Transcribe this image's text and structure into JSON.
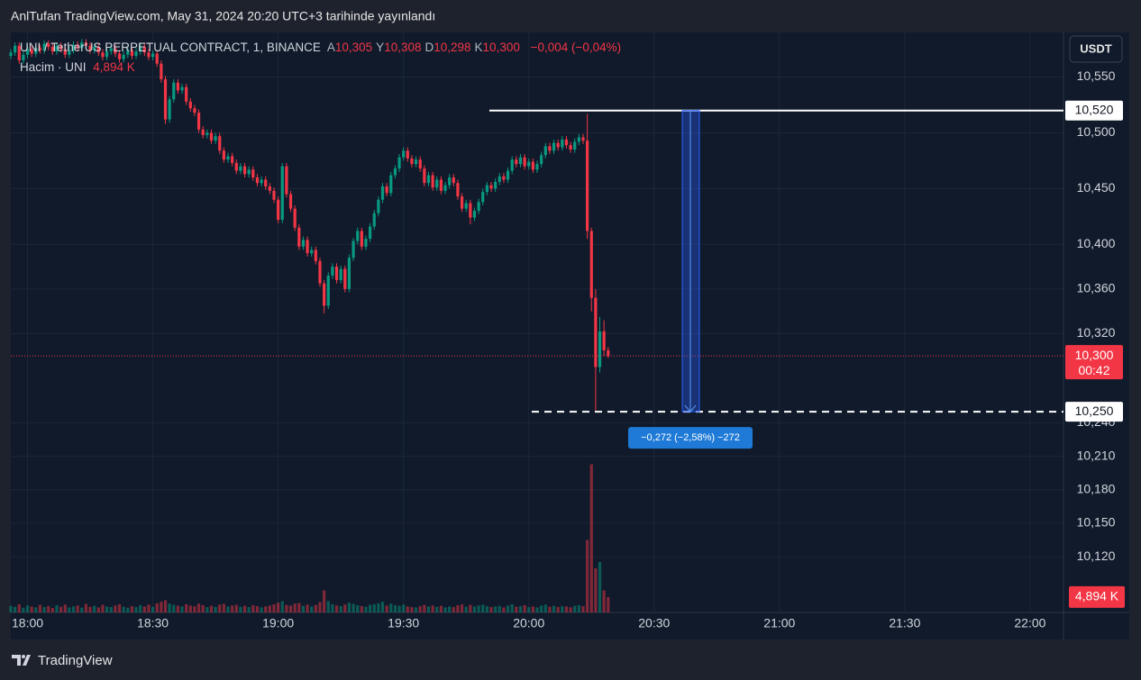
{
  "header": {
    "publisher": "AnlTufan TradingView.com, May 31, 2024 20:20 UTC+3 tarihinde yayınlandı"
  },
  "footer": {
    "brand": "TradingView"
  },
  "chart_data": {
    "type": "candlestick",
    "symbol": "UNI / TetherUS PERPETUAL CONTRACT, 1, BINANCE",
    "ohlc_legend": [
      {
        "key": "A",
        "value": "10,305"
      },
      {
        "key": "Y",
        "value": "10,308"
      },
      {
        "key": "D",
        "value": "10,298"
      },
      {
        "key": "K",
        "value": "10,300"
      }
    ],
    "change": "−0,004 (−0,04%)",
    "currency": "USDT",
    "up_color": "#089981",
    "down_color": "#f23645",
    "x": [
      "17:56",
      "17:57",
      "17:58",
      "17:59",
      "18:00",
      "18:01",
      "18:02",
      "18:03",
      "18:04",
      "18:05",
      "18:06",
      "18:07",
      "18:08",
      "18:09",
      "18:10",
      "18:11",
      "18:12",
      "18:13",
      "18:14",
      "18:15",
      "18:16",
      "18:17",
      "18:18",
      "18:19",
      "18:20",
      "18:21",
      "18:22",
      "18:23",
      "18:24",
      "18:25",
      "18:26",
      "18:27",
      "18:28",
      "18:29",
      "18:30",
      "18:31",
      "18:32",
      "18:33",
      "18:34",
      "18:35",
      "18:36",
      "18:37",
      "18:38",
      "18:39",
      "18:40",
      "18:41",
      "18:42",
      "18:43",
      "18:44",
      "18:45",
      "18:46",
      "18:47",
      "18:48",
      "18:49",
      "18:50",
      "18:51",
      "18:52",
      "18:53",
      "18:54",
      "18:55",
      "18:56",
      "18:57",
      "18:58",
      "18:59",
      "19:00",
      "19:01",
      "19:02",
      "19:03",
      "19:04",
      "19:05",
      "19:06",
      "19:07",
      "19:08",
      "19:09",
      "19:10",
      "19:11",
      "19:12",
      "19:13",
      "19:14",
      "19:15",
      "19:16",
      "19:17",
      "19:18",
      "19:19",
      "19:20",
      "19:21",
      "19:22",
      "19:23",
      "19:24",
      "19:25",
      "19:26",
      "19:27",
      "19:28",
      "19:29",
      "19:30",
      "19:31",
      "19:32",
      "19:33",
      "19:34",
      "19:35",
      "19:36",
      "19:37",
      "19:38",
      "19:39",
      "19:40",
      "19:41",
      "19:42",
      "19:43",
      "19:44",
      "19:45",
      "19:46",
      "19:47",
      "19:48",
      "19:49",
      "19:50",
      "19:51",
      "19:52",
      "19:53",
      "19:54",
      "19:55",
      "19:56",
      "19:57",
      "19:58",
      "19:59",
      "20:00",
      "20:01",
      "20:02",
      "20:03",
      "20:04",
      "20:05",
      "20:06",
      "20:07",
      "20:08",
      "20:09",
      "20:10",
      "20:11",
      "20:12",
      "20:13",
      "20:14",
      "20:15",
      "20:16",
      "20:17",
      "20:18",
      "20:19"
    ],
    "candles": [
      [
        10.569,
        10.575,
        10.566,
        10.572
      ],
      [
        10.572,
        10.581,
        10.569,
        10.578
      ],
      [
        10.578,
        10.581,
        10.562,
        10.565
      ],
      [
        10.565,
        10.573,
        10.562,
        10.57
      ],
      [
        10.57,
        10.578,
        10.567,
        10.575
      ],
      [
        10.575,
        10.578,
        10.568,
        10.571
      ],
      [
        10.571,
        10.579,
        10.568,
        10.576
      ],
      [
        10.576,
        10.579,
        10.571,
        10.574
      ],
      [
        10.574,
        10.583,
        10.571,
        10.58
      ],
      [
        10.58,
        10.583,
        10.574,
        10.577
      ],
      [
        10.577,
        10.58,
        10.57,
        10.573
      ],
      [
        10.573,
        10.581,
        10.57,
        10.578
      ],
      [
        10.578,
        10.581,
        10.572,
        10.575
      ],
      [
        10.575,
        10.578,
        10.567,
        10.57
      ],
      [
        10.57,
        10.577,
        10.567,
        10.574
      ],
      [
        10.574,
        10.582,
        10.571,
        10.579
      ],
      [
        10.579,
        10.582,
        10.573,
        10.576
      ],
      [
        10.576,
        10.584,
        10.573,
        10.581
      ],
      [
        10.581,
        10.584,
        10.575,
        10.578
      ],
      [
        10.578,
        10.581,
        10.571,
        10.574
      ],
      [
        10.574,
        10.58,
        10.571,
        10.577
      ],
      [
        10.577,
        10.58,
        10.569,
        10.572
      ],
      [
        10.572,
        10.575,
        10.565,
        10.568
      ],
      [
        10.568,
        10.576,
        10.565,
        10.573
      ],
      [
        10.573,
        10.579,
        10.57,
        10.576
      ],
      [
        10.576,
        10.579,
        10.568,
        10.571
      ],
      [
        10.571,
        10.574,
        10.563,
        10.566
      ],
      [
        10.566,
        10.573,
        10.563,
        10.57
      ],
      [
        10.57,
        10.577,
        10.567,
        10.574
      ],
      [
        10.574,
        10.577,
        10.566,
        10.569
      ],
      [
        10.569,
        10.576,
        10.566,
        10.573
      ],
      [
        10.573,
        10.58,
        10.57,
        10.577
      ],
      [
        10.577,
        10.58,
        10.569,
        10.572
      ],
      [
        10.572,
        10.575,
        10.565,
        10.568
      ],
      [
        10.568,
        10.574,
        10.565,
        10.571
      ],
      [
        10.571,
        10.574,
        10.559,
        10.562
      ],
      [
        10.562,
        10.565,
        10.545,
        10.548
      ],
      [
        10.548,
        10.551,
        10.508,
        10.512
      ],
      [
        10.512,
        10.533,
        10.509,
        10.53
      ],
      [
        10.53,
        10.548,
        10.527,
        10.545
      ],
      [
        10.545,
        10.548,
        10.535,
        10.538
      ],
      [
        10.538,
        10.544,
        10.535,
        10.541
      ],
      [
        10.541,
        10.544,
        10.525,
        10.528
      ],
      [
        10.528,
        10.531,
        10.519,
        10.522
      ],
      [
        10.522,
        10.525,
        10.515,
        10.518
      ],
      [
        10.518,
        10.521,
        10.5,
        10.503
      ],
      [
        10.503,
        10.506,
        10.495,
        10.498
      ],
      [
        10.498,
        10.503,
        10.495,
        10.5
      ],
      [
        10.5,
        10.503,
        10.49,
        10.493
      ],
      [
        10.493,
        10.5,
        10.49,
        10.497
      ],
      [
        10.497,
        10.5,
        10.481,
        10.484
      ],
      [
        10.484,
        10.487,
        10.473,
        10.476
      ],
      [
        10.476,
        10.482,
        10.473,
        10.479
      ],
      [
        10.479,
        10.482,
        10.47,
        10.473
      ],
      [
        10.473,
        10.476,
        10.463,
        10.466
      ],
      [
        10.466,
        10.473,
        10.463,
        10.47
      ],
      [
        10.47,
        10.473,
        10.46,
        10.463
      ],
      [
        10.463,
        10.47,
        10.46,
        10.467
      ],
      [
        10.467,
        10.47,
        10.457,
        10.46
      ],
      [
        10.46,
        10.463,
        10.452,
        10.455
      ],
      [
        10.455,
        10.461,
        10.452,
        10.458
      ],
      [
        10.458,
        10.461,
        10.449,
        10.452
      ],
      [
        10.452,
        10.455,
        10.445,
        10.448
      ],
      [
        10.448,
        10.451,
        10.437,
        10.44
      ],
      [
        10.44,
        10.443,
        10.419,
        10.422
      ],
      [
        10.422,
        10.473,
        10.419,
        10.47
      ],
      [
        10.47,
        10.473,
        10.442,
        10.445
      ],
      [
        10.445,
        10.448,
        10.429,
        10.432
      ],
      [
        10.432,
        10.435,
        10.412,
        10.415
      ],
      [
        10.415,
        10.418,
        10.395,
        10.398
      ],
      [
        10.398,
        10.407,
        10.395,
        10.404
      ],
      [
        10.404,
        10.407,
        10.389,
        10.392
      ],
      [
        10.392,
        10.398,
        10.389,
        10.395
      ],
      [
        10.395,
        10.398,
        10.382,
        10.385
      ],
      [
        10.385,
        10.388,
        10.362,
        10.365
      ],
      [
        10.365,
        10.368,
        10.338,
        10.345
      ],
      [
        10.345,
        10.375,
        10.342,
        10.372
      ],
      [
        10.372,
        10.383,
        10.369,
        10.38
      ],
      [
        10.38,
        10.383,
        10.365,
        10.368
      ],
      [
        10.368,
        10.381,
        10.365,
        10.378
      ],
      [
        10.378,
        10.381,
        10.357,
        10.36
      ],
      [
        10.36,
        10.391,
        10.357,
        10.388
      ],
      [
        10.388,
        10.406,
        10.385,
        10.403
      ],
      [
        10.403,
        10.415,
        10.4,
        10.412
      ],
      [
        10.412,
        10.415,
        10.395,
        10.398
      ],
      [
        10.398,
        10.408,
        10.395,
        10.405
      ],
      [
        10.405,
        10.419,
        10.402,
        10.416
      ],
      [
        10.416,
        10.431,
        10.413,
        10.428
      ],
      [
        10.428,
        10.443,
        10.425,
        10.44
      ],
      [
        10.44,
        10.455,
        10.437,
        10.452
      ],
      [
        10.452,
        10.455,
        10.443,
        10.446
      ],
      [
        10.446,
        10.465,
        10.443,
        10.462
      ],
      [
        10.462,
        10.471,
        10.459,
        10.468
      ],
      [
        10.468,
        10.481,
        10.465,
        10.478
      ],
      [
        10.478,
        10.487,
        10.475,
        10.484
      ],
      [
        10.484,
        10.487,
        10.474,
        10.477
      ],
      [
        10.477,
        10.48,
        10.469,
        10.472
      ],
      [
        10.472,
        10.479,
        10.469,
        10.476
      ],
      [
        10.476,
        10.479,
        10.465,
        10.468
      ],
      [
        10.468,
        10.471,
        10.452,
        10.455
      ],
      [
        10.455,
        10.465,
        10.452,
        10.462
      ],
      [
        10.462,
        10.465,
        10.448,
        10.451
      ],
      [
        10.451,
        10.461,
        10.448,
        10.458
      ],
      [
        10.458,
        10.461,
        10.445,
        10.448
      ],
      [
        10.448,
        10.456,
        10.445,
        10.453
      ],
      [
        10.453,
        10.463,
        10.45,
        10.46
      ],
      [
        10.46,
        10.463,
        10.452,
        10.455
      ],
      [
        10.455,
        10.458,
        10.44,
        10.443
      ],
      [
        10.443,
        10.446,
        10.429,
        10.432
      ],
      [
        10.432,
        10.44,
        10.429,
        10.437
      ],
      [
        10.437,
        10.44,
        10.418,
        10.424
      ],
      [
        10.424,
        10.433,
        10.421,
        10.43
      ],
      [
        10.43,
        10.441,
        10.427,
        10.438
      ],
      [
        10.438,
        10.45,
        10.435,
        10.447
      ],
      [
        10.447,
        10.456,
        10.444,
        10.453
      ],
      [
        10.453,
        10.456,
        10.447,
        10.45
      ],
      [
        10.45,
        10.459,
        10.447,
        10.456
      ],
      [
        10.456,
        10.464,
        10.453,
        10.461
      ],
      [
        10.461,
        10.464,
        10.455,
        10.458
      ],
      [
        10.458,
        10.469,
        10.455,
        10.466
      ],
      [
        10.466,
        10.479,
        10.463,
        10.476
      ],
      [
        10.476,
        10.479,
        10.469,
        10.472
      ],
      [
        10.472,
        10.481,
        10.469,
        10.478
      ],
      [
        10.478,
        10.481,
        10.467,
        10.47
      ],
      [
        10.47,
        10.477,
        10.467,
        10.474
      ],
      [
        10.474,
        10.477,
        10.464,
        10.467
      ],
      [
        10.467,
        10.475,
        10.464,
        10.472
      ],
      [
        10.472,
        10.483,
        10.469,
        10.48
      ],
      [
        10.48,
        10.491,
        10.477,
        10.488
      ],
      [
        10.488,
        10.491,
        10.481,
        10.484
      ],
      [
        10.484,
        10.494,
        10.481,
        10.491
      ],
      [
        10.491,
        10.494,
        10.484,
        10.487
      ],
      [
        10.487,
        10.497,
        10.484,
        10.494
      ],
      [
        10.494,
        10.497,
        10.486,
        10.489
      ],
      [
        10.489,
        10.492,
        10.482,
        10.485
      ],
      [
        10.485,
        10.495,
        10.482,
        10.492
      ],
      [
        10.492,
        10.499,
        10.489,
        10.496
      ],
      [
        10.496,
        10.499,
        10.49,
        10.493
      ],
      [
        10.493,
        10.517,
        10.405,
        10.412
      ],
      [
        10.412,
        10.415,
        10.34,
        10.352
      ],
      [
        10.352,
        10.36,
        10.25,
        10.29
      ],
      [
        10.29,
        10.335,
        10.285,
        10.322
      ],
      [
        10.322,
        10.332,
        10.3,
        10.305
      ],
      [
        10.305,
        10.308,
        10.298,
        10.3
      ]
    ],
    "xlim": [
      "17:56",
      "22:08"
    ],
    "xticks": [
      "18:00",
      "18:30",
      "19:00",
      "19:30",
      "20:00",
      "20:30",
      "21:00",
      "21:30",
      "22:00"
    ],
    "ylim": [
      10.07,
      10.59
    ],
    "yticks": [
      {
        "value": 10.55,
        "label": "10,550"
      },
      {
        "value": 10.5,
        "label": "10,500"
      },
      {
        "value": 10.45,
        "label": "10,450"
      },
      {
        "value": 10.4,
        "label": "10,400"
      },
      {
        "value": 10.36,
        "label": "10,360"
      },
      {
        "value": 10.32,
        "label": "10,320"
      },
      {
        "value": 10.24,
        "label": "10,240"
      },
      {
        "value": 10.21,
        "label": "10,210"
      },
      {
        "value": 10.18,
        "label": "10,180"
      },
      {
        "value": 10.15,
        "label": "10,150"
      },
      {
        "value": 10.12,
        "label": "10,120"
      }
    ],
    "grid": true,
    "volume": {
      "name": "Hacim · UNI",
      "ylim": [
        0,
        70
      ],
      "last": {
        "value": 4.894,
        "label": "4,894 K"
      },
      "values": [
        2.1,
        1.8,
        2.6,
        1.5,
        2.2,
        1.9,
        1.6,
        2.4,
        1.7,
        2.0,
        1.4,
        2.3,
        1.8,
        2.5,
        1.6,
        1.9,
        2.2,
        1.5,
        2.7,
        1.8,
        2.1,
        1.6,
        2.4,
        1.9,
        1.7,
        2.2,
        2.6,
        1.8,
        1.5,
        2.0,
        1.7,
        2.3,
        1.9,
        2.5,
        1.8,
        2.9,
        3.4,
        3.9,
        2.8,
        2.4,
        2.1,
        1.9,
        2.6,
        2.2,
        2.0,
        2.8,
        2.3,
        1.7,
        2.1,
        1.8,
        2.5,
        2.7,
        1.9,
        2.2,
        2.4,
        1.8,
        2.1,
        1.7,
        2.3,
        2.0,
        1.6,
        1.9,
        2.2,
        2.6,
        3.1,
        3.6,
        2.4,
        2.2,
        2.8,
        3.0,
        2.1,
        2.5,
        1.9,
        2.4,
        3.3,
        7.0,
        3.6,
        2.6,
        2.2,
        2.0,
        2.5,
        3.1,
        2.7,
        2.3,
        2.0,
        1.8,
        2.4,
        2.6,
        2.9,
        3.4,
        2.2,
        2.8,
        2.3,
        2.1,
        2.5,
        1.9,
        1.7,
        1.6,
        2.0,
        2.4,
        1.9,
        2.2,
        1.8,
        2.1,
        1.6,
        1.9,
        1.7,
        2.3,
        2.6,
        1.8,
        2.4,
        1.9,
        2.2,
        2.5,
        2.0,
        1.7,
        1.9,
        2.1,
        1.6,
        2.2,
        2.6,
        1.8,
        2.0,
        2.3,
        1.7,
        1.9,
        1.6,
        2.2,
        2.5,
        1.8,
        2.1,
        1.7,
        2.0,
        1.9,
        1.6,
        2.1,
        2.3,
        2.0,
        23.0,
        47.0,
        14.0,
        16.0,
        7.0,
        4.894
      ]
    },
    "last_price": {
      "value": 10.3,
      "label": "10,300",
      "countdown": "00:42"
    },
    "measure": {
      "start": {
        "value": 10.52,
        "label": "10,520"
      },
      "end": {
        "value": 10.25,
        "label": "10,250"
      },
      "label": "−0,272 (−2,58%) −272"
    }
  }
}
